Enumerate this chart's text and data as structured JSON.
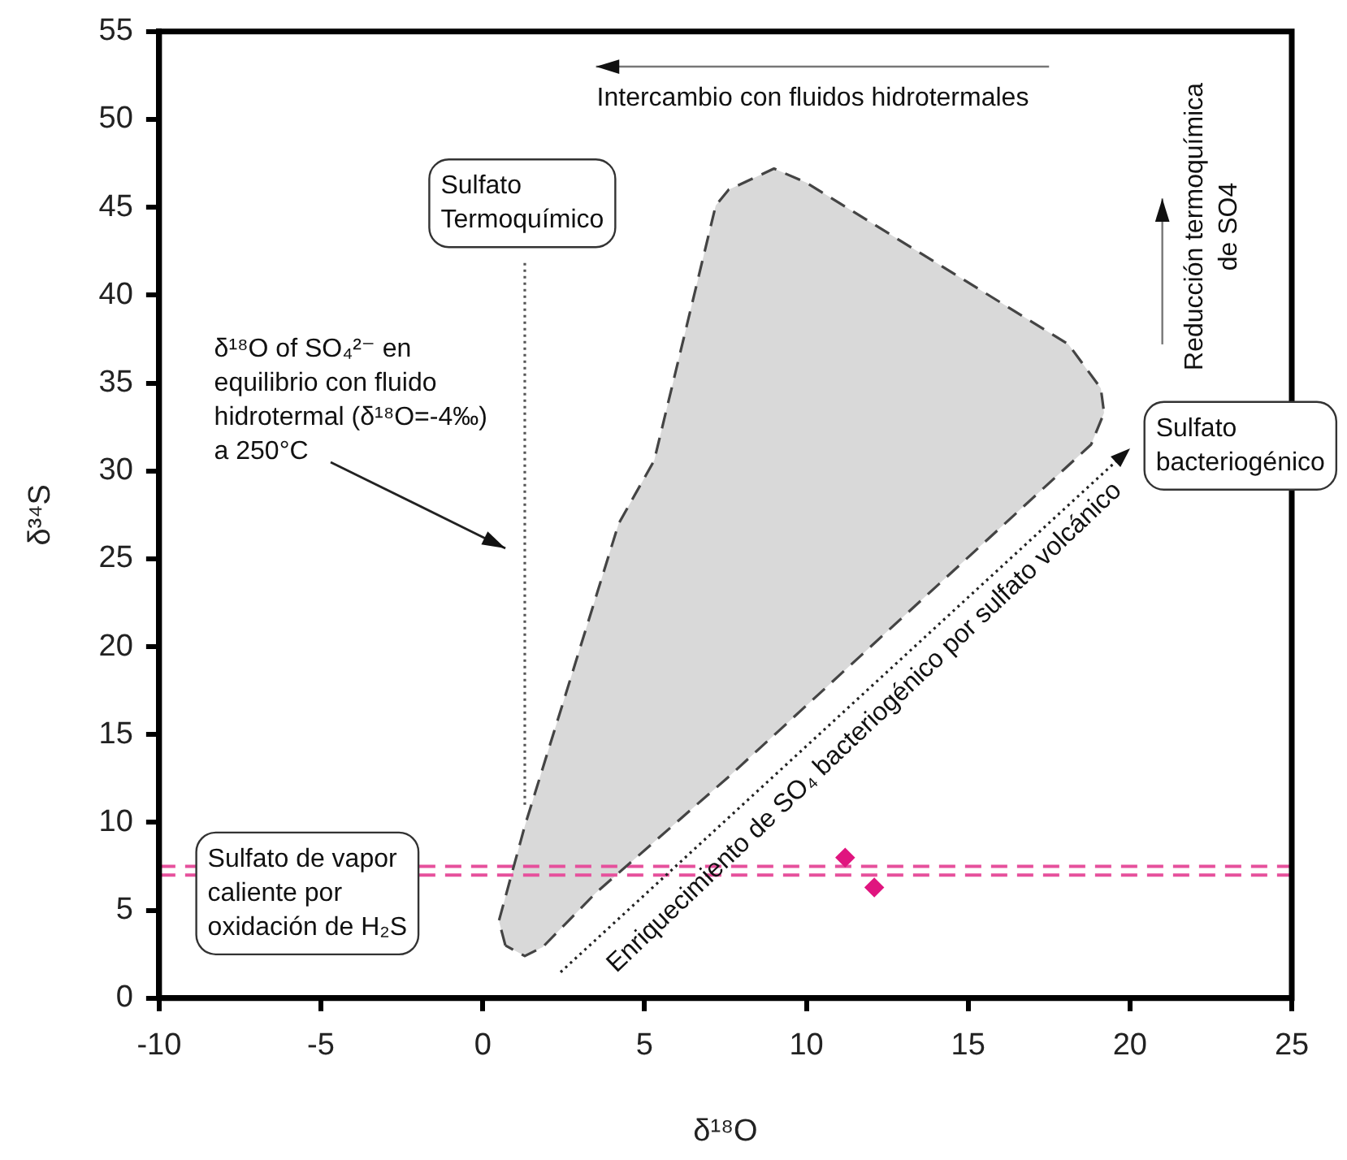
{
  "chart_data": {
    "type": "scatter",
    "xlabel": "δ¹⁸O",
    "ylabel": "δ³⁴S",
    "xlim": [
      -10,
      25
    ],
    "ylim": [
      0,
      55
    ],
    "xticks": [
      -10,
      -5,
      0,
      5,
      10,
      15,
      20,
      25
    ],
    "yticks": [
      0,
      5,
      10,
      15,
      20,
      25,
      30,
      35,
      40,
      45,
      50,
      55
    ],
    "grid": false,
    "marker": "diamond",
    "series": [
      {
        "type": "area",
        "color": "#d9d9d9",
        "line_style": "dashed",
        "marker": "none",
        "x": [
          0.7,
          0.5,
          1.3,
          4.2,
          5.3,
          7.2,
          7.6,
          9.0,
          10.0,
          18.1,
          19.1,
          19.2,
          18.8,
          7.6,
          3.5,
          1.85,
          1.3,
          0.7
        ],
        "values": [
          3.0,
          4.4,
          9.8,
          27,
          30.6,
          45.1,
          46,
          47.2,
          46.4,
          37.2,
          34.7,
          33.3,
          31.5,
          12.6,
          6.0,
          2.9,
          2.4,
          3.0
        ]
      },
      {
        "type": "line",
        "color": "#555555",
        "line_style": "dotted",
        "marker": "none",
        "x": [
          1.3,
          1.3
        ],
        "values": [
          11,
          42
        ]
      },
      {
        "type": "scatter",
        "color": "#e0157f",
        "x": [
          11.2,
          12.1
        ],
        "values": [
          8,
          6.3
        ]
      }
    ],
    "ref_lines": [
      {
        "axis": "y",
        "value": 7.5,
        "color": "#e6509c",
        "line_style": "dashed"
      },
      {
        "axis": "y",
        "value": 7.0,
        "color": "#e6509c",
        "line_style": "dashed"
      }
    ],
    "annotations": [
      "Intercambio con fluidos hidrotermales",
      "Sulfato\nTermoquímico",
      "δ¹⁸O of SO₄²⁻ en\nequilibrio con fluido\nhidrotermal (δ¹⁸O=-4‰)\na 250°C",
      "Reducción termoquímica\nde SO4",
      "Sulfato\nbacteriogénico",
      "Sulfato de vapor\ncaliente por\noxidación de H₂S",
      "Enriquecimiento de SO₄ bacteriogénico por sulfato volcánico"
    ]
  }
}
